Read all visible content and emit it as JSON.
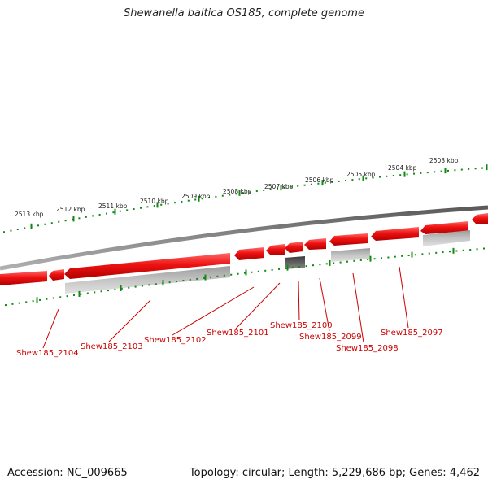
{
  "title": "Shewanella baltica OS185, complete genome",
  "footer": {
    "accession": "Accession: NC_009665",
    "stats": "Topology: circular; Length: 5,229,686 bp; Genes: 4,462"
  },
  "colors": {
    "backbone": "#7a7a7a",
    "cds": "#ee1111",
    "cds_dark": "#b80000",
    "gene_gray": "#b5b5b5",
    "gene_dark": "#5e5e5e",
    "tick": "#118811",
    "label": "#cc0000"
  },
  "scale_labels": [
    "2513 kbp",
    "2512 kbp",
    "2511 kbp",
    "2510 kbp",
    "2509 kbp",
    "2508 kbp",
    "2507 kbp",
    "2506 kbp",
    "2505 kbp",
    "2504 kbp",
    "2503 kbp"
  ],
  "gene_labels": [
    "Shew185_2104",
    "Shew185_2103",
    "Shew185_2102",
    "Shew185_2101",
    "Shew185_2100",
    "Shew185_2099",
    "Shew185_2098",
    "Shew185_2097"
  ]
}
